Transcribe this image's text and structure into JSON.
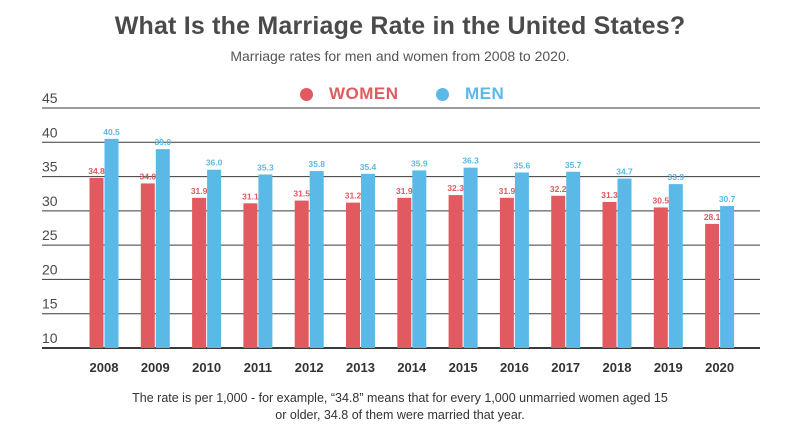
{
  "colors": {
    "women": "#e05a5f",
    "men": "#5ab9e6",
    "grid": "#3a3a3a"
  },
  "footnote": {
    "line1": "The rate is per 1,000 - for example, “34.8” means that for every 1,000 unmarried women aged 15",
    "line2": "or older, 34.8 of them were married that year."
  },
  "chart_data": {
    "type": "bar",
    "title": "What Is the Marriage Rate in the United States?",
    "subtitle": "Marriage rates for men and women from 2008 to 2020.",
    "categories": [
      "2008",
      "2009",
      "2010",
      "2011",
      "2012",
      "2013",
      "2014",
      "2015",
      "2016",
      "2017",
      "2018",
      "2019",
      "2020"
    ],
    "series": [
      {
        "name": "WOMEN",
        "color": "#e05a5f",
        "values": [
          34.8,
          34.0,
          31.9,
          31.1,
          31.5,
          31.2,
          31.9,
          32.3,
          31.9,
          32.2,
          31.3,
          30.5,
          28.1
        ]
      },
      {
        "name": "MEN",
        "color": "#5ab9e6",
        "values": [
          40.5,
          39.0,
          36.0,
          35.3,
          35.8,
          35.4,
          35.9,
          36.3,
          35.6,
          35.7,
          34.7,
          33.9,
          30.7
        ]
      }
    ],
    "yticks": [
      10,
      15,
      20,
      25,
      30,
      35,
      40,
      45
    ],
    "ylim": [
      10,
      45
    ],
    "legend_position": "top-center",
    "grid": true
  }
}
